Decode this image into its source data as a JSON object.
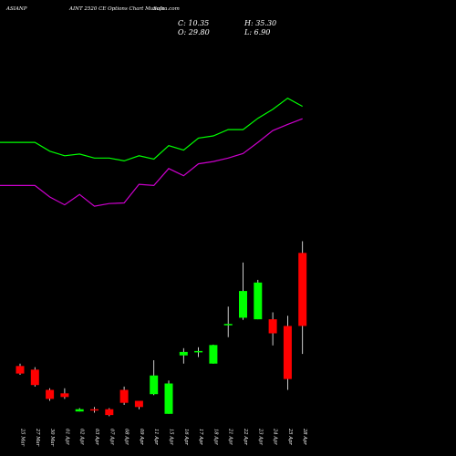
{
  "header": {
    "symbol": "ASIANP",
    "title": "AINT 2520 CE Options Chart Munafa",
    "source": "Sutra.com",
    "close_label": "C: 10.35",
    "high_label": "H: 35.30",
    "open_label": "O: 29.80",
    "low_label": "L: 6.90"
  },
  "colors": {
    "background": "#000000",
    "up": "#00ff00",
    "down": "#ff0000",
    "line_upper": "#00ff00",
    "line_lower": "#cc00cc",
    "text": "#ffffff"
  },
  "chart_data": {
    "type": "candlestick",
    "categories": [
      "25 Mar",
      "27 Mar",
      "30 Mar",
      "01 Apr",
      "02 Apr",
      "03 Apr",
      "07 Apr",
      "08 Apr",
      "09 Apr",
      "11 Apr",
      "15 Apr",
      "16 Apr",
      "17 Apr",
      "18 Apr",
      "21 Apr",
      "22 Apr",
      "23 Apr",
      "24 Apr",
      "25 Apr",
      "28 Apr"
    ],
    "tick_labels": [
      "25 Mar",
      "27 Mar",
      "30 Mar",
      "01 Apr",
      "02 Apr",
      "03 Apr",
      "07 Apr",
      "08 Apr",
      "09 Apr",
      "11 Apr",
      "15 Apr",
      "16 Apr",
      "17 Apr",
      "18 Apr",
      "21 Apr",
      "22 Apr",
      "23 Apr",
      "24 Apr",
      "25 Apr",
      "28 Apr"
    ],
    "ohlc": [
      {
        "o": 5.8,
        "h": 6.0,
        "l": 5.1,
        "c": 5.2
      },
      {
        "o": 5.5,
        "h": 5.7,
        "l": 4.3,
        "c": 4.4
      },
      {
        "o": 4.1,
        "h": 4.2,
        "l": 3.5,
        "c": 3.6
      },
      {
        "o": 3.9,
        "h": 4.2,
        "l": 3.6,
        "c": 3.7
      },
      {
        "o": 3.0,
        "h": 3.15,
        "l": 3.0,
        "c": 3.1
      },
      {
        "o": 3.1,
        "h": 3.2,
        "l": 2.95,
        "c": 3.05
      },
      {
        "o": 3.1,
        "h": 3.15,
        "l": 2.8,
        "c": 2.85
      },
      {
        "o": 4.1,
        "h": 4.3,
        "l": 3.3,
        "c": 3.4
      },
      {
        "o": 3.5,
        "h": 3.5,
        "l": 3.1,
        "c": 3.2
      },
      {
        "o": 3.85,
        "h": 6.3,
        "l": 3.8,
        "c": 5.05
      },
      {
        "o": 2.9,
        "h": 4.7,
        "l": 2.9,
        "c": 4.5
      },
      {
        "o": 6.75,
        "h": 7.5,
        "l": 6.0,
        "c": 7.1
      },
      {
        "o": 7.2,
        "h": 7.6,
        "l": 6.6,
        "c": 7.2
      },
      {
        "o": 6.0,
        "h": 7.9,
        "l": 6.0,
        "c": 7.85
      },
      {
        "o": 10.6,
        "h": 13.7,
        "l": 8.8,
        "c": 10.65
      },
      {
        "o": 11.65,
        "h": 25.9,
        "l": 11.3,
        "c": 17.15
      },
      {
        "o": 11.4,
        "h": 20.15,
        "l": 11.4,
        "c": 19.4
      },
      {
        "o": 11.4,
        "h": 12.6,
        "l": 7.8,
        "c": 9.3
      },
      {
        "o": 10.35,
        "h": 12.0,
        "l": 4.1,
        "c": 4.8
      },
      {
        "o": 29.8,
        "h": 35.3,
        "l": 6.9,
        "c": 10.35
      }
    ],
    "series": [
      {
        "values": [
          28.9,
          28.9,
          28.1,
          27.7,
          27.85,
          27.5,
          27.5,
          27.25,
          27.7,
          27.4,
          28.6,
          28.2,
          29.3,
          29.5,
          30.1,
          30.1,
          31.2,
          32.1,
          33.25,
          32.4
        ]
      },
      {
        "values": [
          25.2,
          25.2,
          24.3,
          23.7,
          24.5,
          23.6,
          23.8,
          23.85,
          25.3,
          25.2,
          26.6,
          26.0,
          27.0,
          27.2,
          27.5,
          27.9,
          28.9,
          30.0,
          30.6,
          31.15
        ]
      }
    ],
    "y_scale": "log"
  }
}
